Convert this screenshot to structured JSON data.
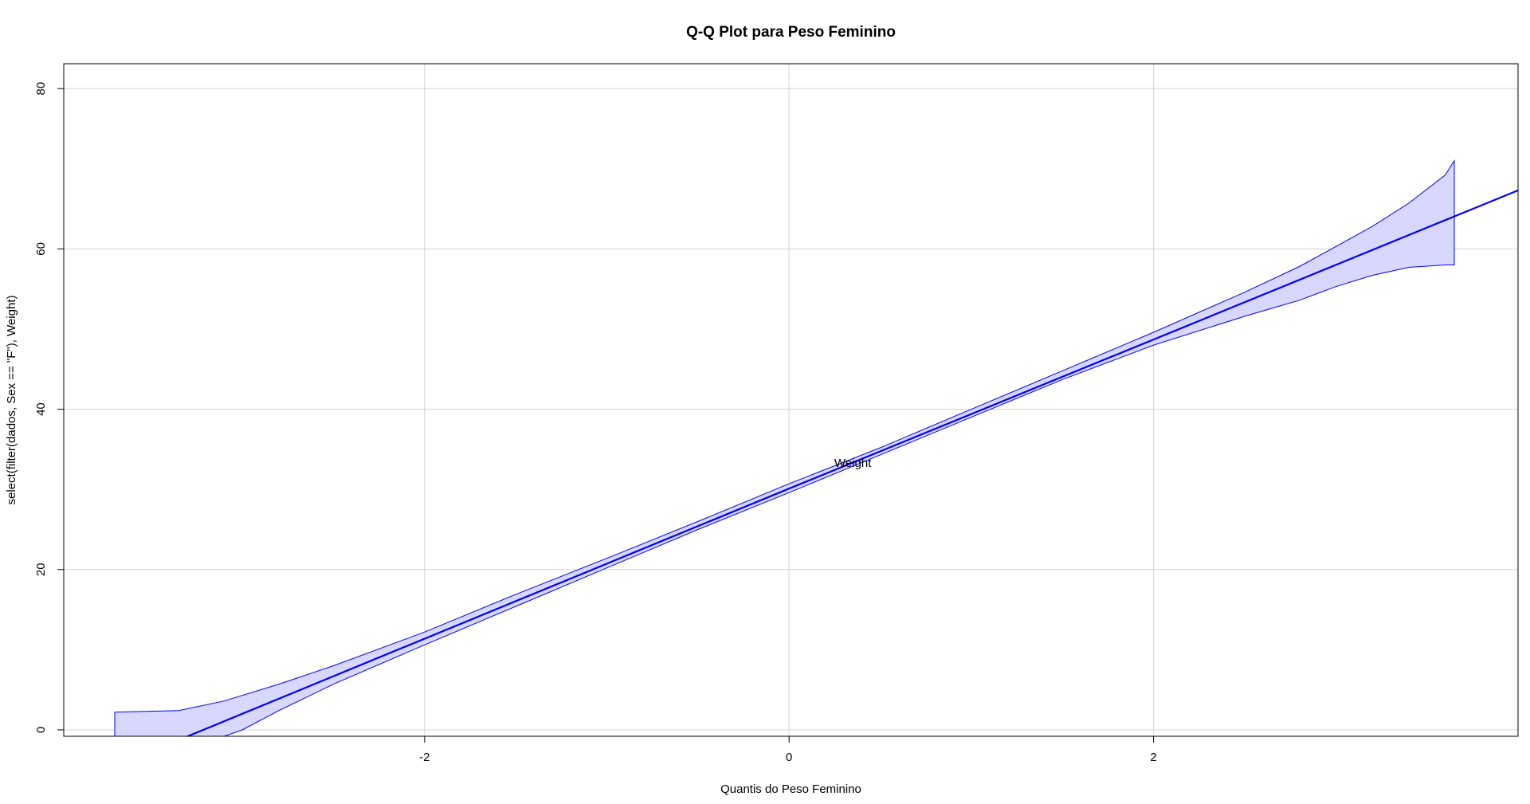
{
  "chart_data": {
    "type": "line",
    "title": "Q-Q Plot para Peso Feminino",
    "xlabel": "Quantis do Peso Feminino",
    "ylabel": "select(filter(dados, Sex == \"F\"), Weight)",
    "xlim": [
      -3.98,
      4.0
    ],
    "ylim": [
      -0.8,
      83.1
    ],
    "x_ticks": [
      -2,
      0,
      2
    ],
    "y_ticks": [
      0,
      20,
      40,
      60,
      80
    ],
    "grid": true,
    "annotation": "Weight",
    "colors": {
      "line": "#0000ff",
      "band_fill": "#d7d7ff",
      "band_stroke": "#0000ff",
      "grid": "#d3d3d3",
      "frame": "#000000"
    },
    "series": [
      {
        "x": [
          -3.3,
          0,
          4.0
        ],
        "y": [
          -0.8,
          30.1,
          67.3
        ]
      }
    ],
    "band": {
      "upper": {
        "x": [
          -3.7,
          -3.35,
          -3.1,
          -2.8,
          -2.5,
          -2.0,
          -1.5,
          -1.0,
          -0.5,
          0.0,
          0.5,
          1.0,
          1.5,
          2.0,
          2.5,
          2.8,
          3.0,
          3.2,
          3.4,
          3.6,
          3.65
        ],
        "y": [
          2.2,
          2.4,
          3.6,
          5.7,
          8.0,
          12.2,
          16.9,
          21.4,
          26.0,
          30.7,
          35.2,
          40.0,
          44.8,
          49.6,
          54.6,
          57.8,
          60.3,
          62.8,
          65.7,
          69.2,
          71.0
        ]
      },
      "lower": {
        "x": [
          3.65,
          3.6,
          3.4,
          3.2,
          3.0,
          2.8,
          2.5,
          2.0,
          1.5,
          1.0,
          0.5,
          0.0,
          -0.5,
          -1.0,
          -1.5,
          -2.0,
          -2.5,
          -2.8,
          -3.0,
          -3.1,
          -3.3,
          -3.7
        ],
        "y": [
          58.0,
          58.0,
          57.7,
          56.7,
          55.3,
          53.6,
          51.6,
          48.0,
          43.7,
          39.0,
          34.3,
          29.6,
          25.0,
          20.2,
          15.4,
          10.6,
          5.7,
          2.4,
          0.0,
          -0.8,
          -0.8,
          -0.8
        ]
      }
    }
  }
}
